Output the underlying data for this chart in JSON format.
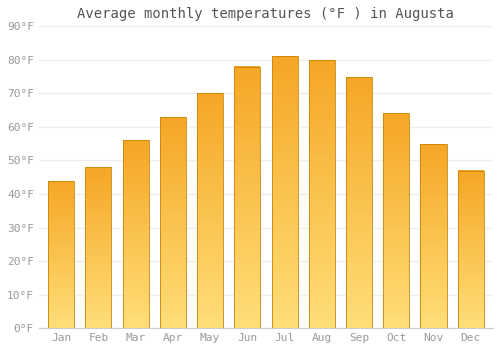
{
  "title": "Average monthly temperatures (°F ) in Augusta",
  "months": [
    "Jan",
    "Feb",
    "Mar",
    "Apr",
    "May",
    "Jun",
    "Jul",
    "Aug",
    "Sep",
    "Oct",
    "Nov",
    "Dec"
  ],
  "values": [
    44,
    48,
    56,
    63,
    70,
    78,
    81,
    80,
    75,
    64,
    55,
    47
  ],
  "bar_color_top": "#F5A623",
  "bar_color_bottom": "#FFDD77",
  "bar_edge_color": "#C8850A",
  "ylim": [
    0,
    90
  ],
  "yticks": [
    0,
    10,
    20,
    30,
    40,
    50,
    60,
    70,
    80,
    90
  ],
  "ytick_labels": [
    "0°F",
    "10°F",
    "20°F",
    "30°F",
    "40°F",
    "50°F",
    "60°F",
    "70°F",
    "80°F",
    "90°F"
  ],
  "bg_color": "#FFFFFF",
  "plot_bg_color": "#FFFFFF",
  "grid_color": "#EEEEEE",
  "title_fontsize": 10,
  "tick_fontsize": 8,
  "font_family": "monospace",
  "bar_width": 0.7,
  "tick_color": "#999999",
  "title_color": "#555555"
}
